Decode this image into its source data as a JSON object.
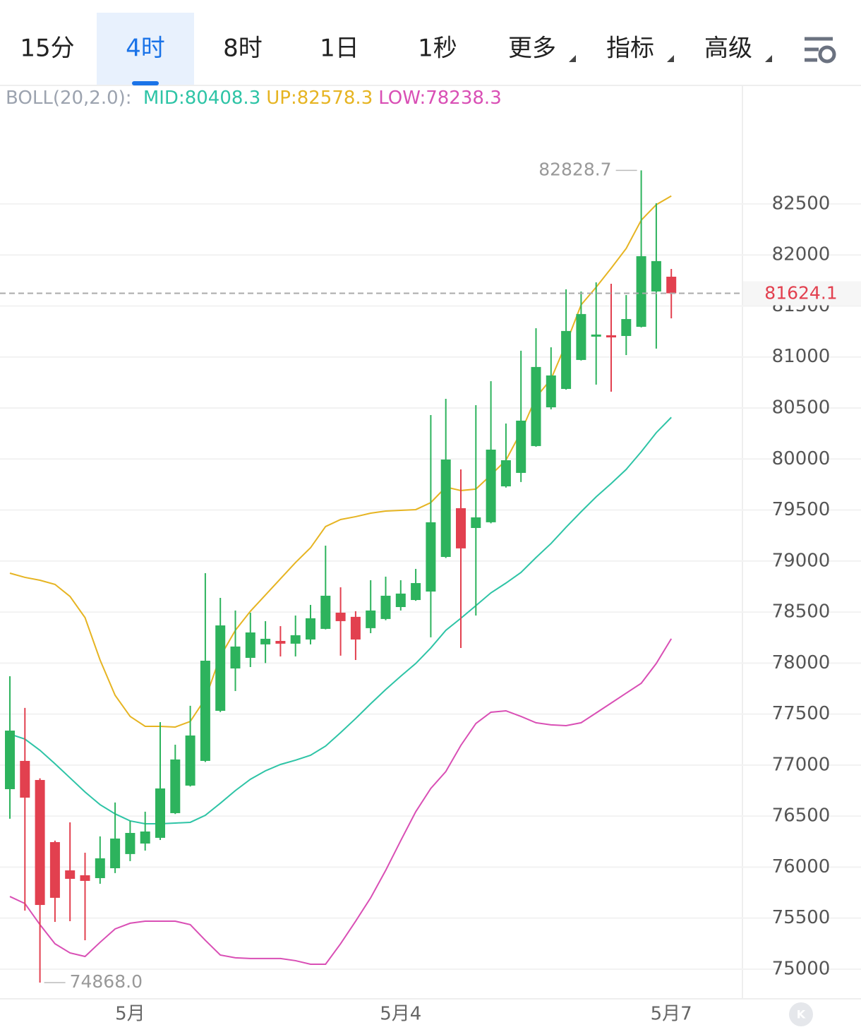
{
  "toolbar": {
    "tabs": [
      {
        "label": "15分"
      },
      {
        "label": "4时",
        "active": true
      },
      {
        "label": "8时"
      },
      {
        "label": "1日"
      },
      {
        "label": "1秒"
      },
      {
        "label": "更多",
        "dropdown": true
      },
      {
        "label": "指标",
        "dropdown": true
      },
      {
        "label": "高级",
        "dropdown": true
      }
    ]
  },
  "chart_data": {
    "type": "candlestick",
    "indicator": "BOLL(20,2.0):",
    "categories": [
      null,
      null,
      null,
      null,
      null,
      null,
      null,
      null,
      "5月",
      null,
      null,
      null,
      null,
      null,
      null,
      null,
      null,
      null,
      null,
      null,
      null,
      null,
      null,
      null,
      null,
      null,
      "5月4",
      null,
      null,
      null,
      null,
      null,
      null,
      null,
      null,
      null,
      null,
      null,
      null,
      null,
      null,
      null,
      null,
      null,
      "5月7"
    ],
    "open": [
      76764,
      77041,
      76854,
      76245,
      75968,
      75920,
      75892,
      75989,
      76128,
      76231,
      76287,
      76529,
      76799,
      77041,
      77532,
      77947,
      78051,
      78183,
      78217,
      78190,
      78231,
      78335,
      78494,
      78453,
      78342,
      78432,
      78549,
      78618,
      78701,
      79040,
      79518,
      79324,
      79380,
      79732,
      79864,
      80127,
      80507,
      80687,
      80971,
      81200,
      81213,
      81206,
      81296,
      81642,
      81787
    ],
    "high": [
      77871,
      77560,
      76870,
      76260,
      76439,
      76141,
      76301,
      76633,
      76453,
      76543,
      77421,
      77200,
      77581,
      78881,
      78639,
      78515,
      78494,
      78411,
      78362,
      78466,
      78570,
      79151,
      78743,
      78508,
      78812,
      78847,
      78812,
      78923,
      80431,
      80590,
      79898,
      80528,
      80763,
      80348,
      81061,
      81282,
      81095,
      81663,
      81642,
      81732,
      81718,
      81607,
      82828.7,
      82507,
      81863
    ],
    "low": [
      76474,
      75574,
      74868,
      75463,
      75470,
      75283,
      75837,
      75941,
      76059,
      76162,
      76266,
      76520,
      76790,
      77030,
      77520,
      77726,
      77961,
      78000,
      78065,
      78065,
      78183,
      78330,
      78072,
      78030,
      78293,
      78420,
      78515,
      78610,
      78252,
      79030,
      78148,
      78466,
      79370,
      79720,
      79774,
      80120,
      80487,
      80680,
      80965,
      80729,
      80660,
      81019,
      81290,
      81082,
      81379
    ],
    "close": [
      77338,
      76681,
      75629,
      75699,
      75885,
      75865,
      76086,
      76280,
      76335,
      76349,
      76771,
      77055,
      77290,
      78023,
      78369,
      78162,
      78300,
      78238,
      78190,
      78273,
      78439,
      78660,
      78411,
      78231,
      78515,
      78660,
      78681,
      78784,
      79380,
      79995,
      79124,
      79428,
      80092,
      79988,
      80376,
      80902,
      80819,
      81255,
      81421,
      81220,
      81192,
      81372,
      81988,
      81940,
      81624.1
    ],
    "up_color": "#2db35d",
    "down_color": "#e2404f",
    "series": [
      {
        "name": "MID:",
        "color": "#2ec4a6",
        "values": [
          77304,
          77255,
          77145,
          77013,
          76875,
          76736,
          76612,
          76522,
          76453,
          76425,
          76425,
          76432,
          76439,
          76508,
          76626,
          76750,
          76861,
          76944,
          77006,
          77048,
          77096,
          77186,
          77318,
          77456,
          77601,
          77740,
          77871,
          77996,
          78148,
          78321,
          78439,
          78563,
          78688,
          78784,
          78888,
          79034,
          79172,
          79331,
          79483,
          79629,
          79760,
          79898,
          80071,
          80258,
          80408.3
        ]
      },
      {
        "name": "UP:",
        "color": "#e6b422",
        "values": [
          78881,
          78840,
          78812,
          78771,
          78653,
          78445,
          78030,
          77684,
          77477,
          77380,
          77380,
          77373,
          77428,
          77650,
          78065,
          78321,
          78508,
          78667,
          78826,
          78985,
          79130,
          79338,
          79407,
          79435,
          79469,
          79490,
          79497,
          79504,
          79573,
          79725,
          79691,
          79705,
          79843,
          79988,
          80265,
          80604,
          80784,
          81130,
          81511,
          81684,
          81870,
          82064,
          82341,
          82493,
          82578.3
        ]
      },
      {
        "name": "LOW:",
        "color": "#d94fb5",
        "values": [
          75712,
          75643,
          75436,
          75249,
          75159,
          75124,
          75263,
          75394,
          75450,
          75470,
          75470,
          75470,
          75436,
          75283,
          75138,
          75111,
          75104,
          75104,
          75104,
          75083,
          75048,
          75048,
          75249,
          75470,
          75699,
          75968,
          76259,
          76543,
          76771,
          76937,
          77193,
          77408,
          77518,
          77532,
          77477,
          77415,
          77394,
          77387,
          77415,
          77511,
          77608,
          77705,
          77802,
          77996,
          78238.3
        ]
      }
    ],
    "last_price": 81624.1,
    "annotations": [
      {
        "value": 82828.7,
        "label": "82828.7"
      },
      {
        "value": 74868,
        "label": "74868.0"
      }
    ],
    "ylim": [
      74709,
      83655
    ],
    "yticks": [
      75000,
      75500,
      76000,
      76500,
      77000,
      77500,
      78000,
      78500,
      79000,
      79500,
      80000,
      80500,
      81000,
      81500,
      82000,
      82500
    ],
    "grid": true
  }
}
